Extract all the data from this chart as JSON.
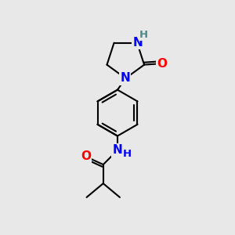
{
  "bg_color": "#e8e8e8",
  "bond_color": "#000000",
  "bond_width": 1.5,
  "atom_colors": {
    "N": "#0000ff",
    "O": "#ff0000",
    "H_imid": "#4a8a8a",
    "H_amide": "#0000ff"
  },
  "font_size_atoms": 11,
  "font_size_H": 9.5,
  "xlim": [
    0,
    10
  ],
  "ylim": [
    0,
    10
  ],
  "figsize": [
    3.0,
    3.0
  ],
  "dpi": 100
}
